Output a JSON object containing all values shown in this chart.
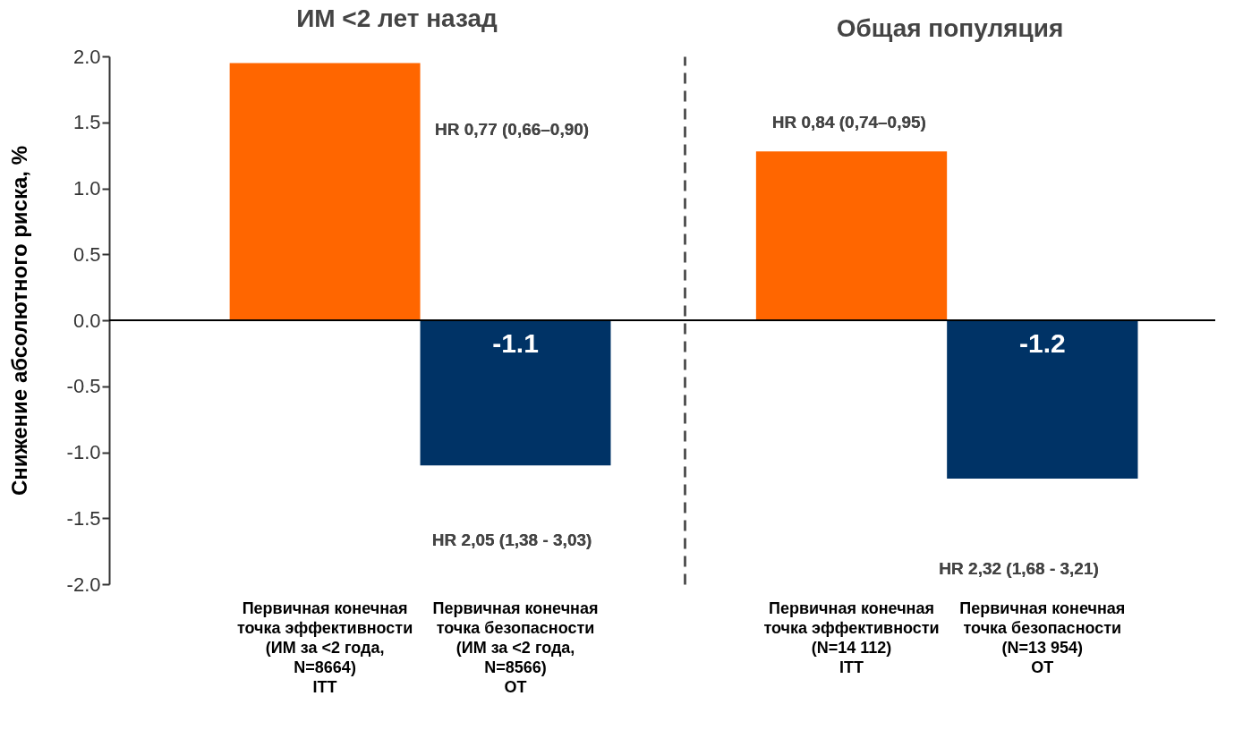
{
  "chart_data": [
    {
      "type": "bar",
      "title": "ИМ <2 лет назад",
      "ylabel": "Снижение абсолютного риска, %",
      "categories": [
        "Первичная конечная\nточка эффективности\n(ИМ за <2 года,\nN=8664)\nITT",
        "Первичная конечная\nточка безопасности\n(ИМ за <2 года,\nN=8566)\nОТ"
      ],
      "values": [
        1.95,
        -1.1
      ],
      "colors": [
        "#ff6600",
        "#003366"
      ],
      "value_labels": [
        null,
        "-1.1"
      ],
      "ylim": [
        -2,
        2
      ],
      "yticks": [
        {
          "value": -2,
          "label": "-2.0"
        },
        {
          "value": -1.5,
          "label": "-1.5"
        },
        {
          "value": -1,
          "label": "-1.0"
        },
        {
          "value": -0.5,
          "label": "-0.5"
        },
        {
          "value": 0,
          "label": "0.0"
        },
        {
          "value": 0.5,
          "label": "0.5"
        },
        {
          "value": 1,
          "label": "1.0"
        },
        {
          "value": 1.5,
          "label": "1.5"
        },
        {
          "value": 2,
          "label": "2.0"
        }
      ],
      "ref_lines": [
        {
          "axis": "y",
          "value": 0,
          "color": "#000000"
        }
      ],
      "annotations": [
        "HR 0,77 (0,66–0,90)",
        "HR 2,05 (1,38 - 3,03)"
      ]
    },
    {
      "type": "bar",
      "title": "Общая популяция",
      "categories": [
        "Первичная конечная\nточка эффективности\n(N=14 112)\nITT",
        "Первичная конечная\nточка безопасности\n(N=13 954)\nОТ"
      ],
      "values": [
        1.28,
        -1.2
      ],
      "colors": [
        "#ff6600",
        "#003366"
      ],
      "value_labels": [
        null,
        "-1.2"
      ],
      "ylim": [
        -2,
        2
      ],
      "tick_labels": "x",
      "ref_lines": [
        {
          "axis": "y",
          "value": 0,
          "color": "#000000"
        }
      ],
      "annotations": [
        "HR 0,84 (0,74–0,95)",
        "HR 2,32 (1,68 - 3,21)"
      ]
    }
  ]
}
